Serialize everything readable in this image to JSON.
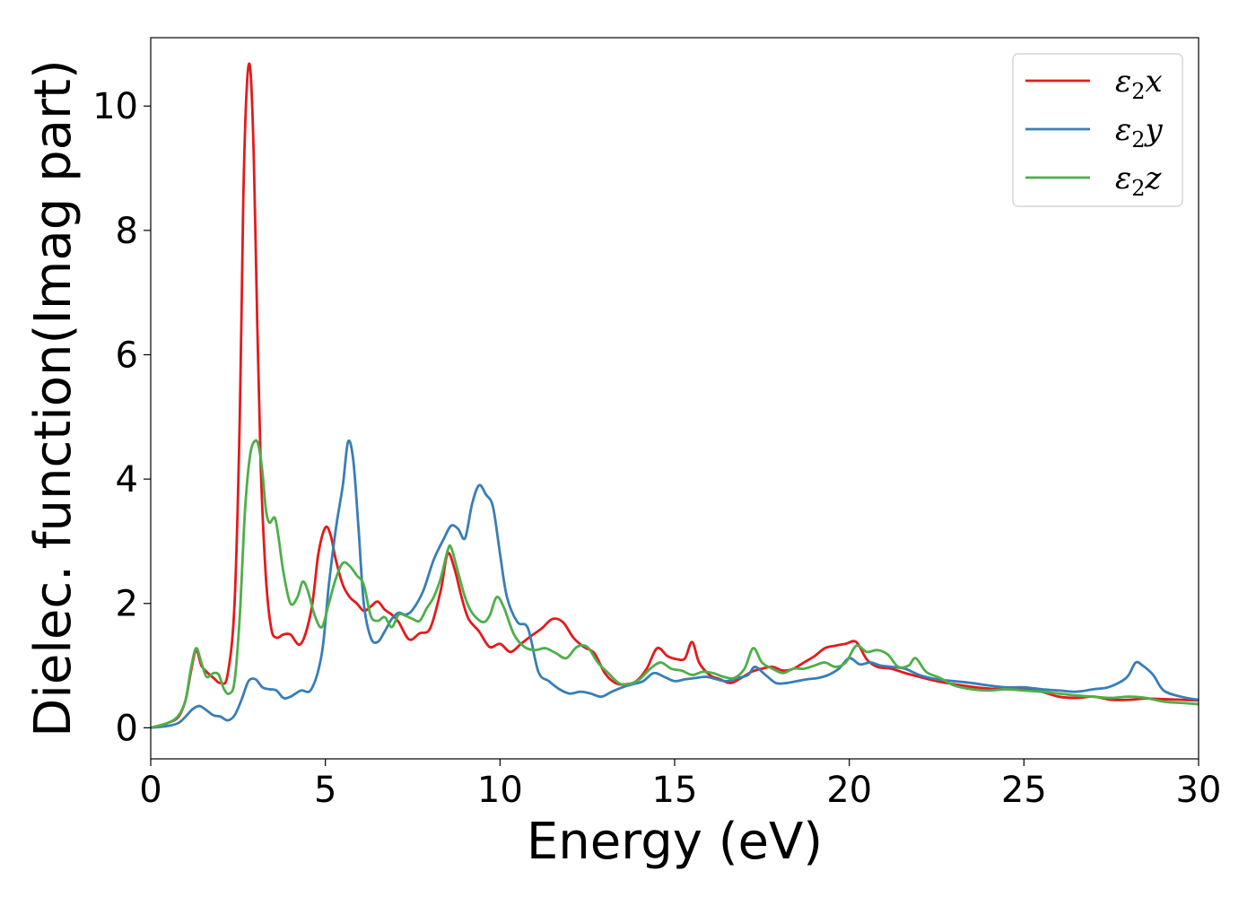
{
  "chart_data": {
    "type": "line",
    "xlabel": "Energy (eV)",
    "ylabel": "Dielec. function(Imag part)",
    "xlim": [
      0,
      30
    ],
    "ylim": [
      -0.5,
      11.1
    ],
    "xticks": [
      0,
      5,
      10,
      15,
      20,
      25,
      30
    ],
    "yticks": [
      0,
      2,
      4,
      6,
      8,
      10
    ],
    "grid": false,
    "legend_position": "top-right",
    "series": [
      {
        "name": "ε₂x",
        "legend_main": "ε",
        "legend_sub": "2",
        "legend_tail": "x",
        "color": "#e41a1c",
        "x": [
          0,
          0.5,
          0.8,
          1.0,
          1.15,
          1.3,
          1.45,
          1.6,
          1.8,
          2.0,
          2.2,
          2.4,
          2.55,
          2.65,
          2.75,
          2.85,
          2.95,
          3.05,
          3.15,
          3.3,
          3.45,
          3.6,
          3.8,
          4.0,
          4.3,
          4.6,
          4.8,
          5.0,
          5.15,
          5.3,
          5.5,
          5.7,
          5.9,
          6.1,
          6.3,
          6.5,
          6.7,
          6.9,
          7.1,
          7.4,
          7.7,
          8.0,
          8.3,
          8.5,
          8.7,
          8.9,
          9.1,
          9.4,
          9.7,
          10.0,
          10.3,
          10.6,
          10.9,
          11.2,
          11.5,
          11.8,
          12.1,
          12.4,
          12.7,
          13.0,
          13.3,
          13.6,
          13.9,
          14.2,
          14.5,
          14.8,
          15.1,
          15.3,
          15.5,
          15.7,
          16.0,
          16.3,
          16.6,
          16.9,
          17.2,
          17.5,
          17.8,
          18.1,
          18.4,
          18.7,
          19.0,
          19.3,
          19.6,
          19.9,
          20.2,
          20.5,
          20.8,
          21.2,
          21.6,
          22.0,
          22.5,
          23.0,
          23.5,
          24.0,
          24.5,
          25.0,
          25.5,
          26.0,
          26.5,
          27.0,
          27.5,
          28.0,
          28.5,
          29.0,
          29.5,
          30.0
        ],
        "y": [
          0.0,
          0.08,
          0.18,
          0.45,
          0.9,
          1.25,
          1.0,
          0.9,
          0.8,
          0.72,
          0.85,
          2.0,
          5.0,
          8.5,
          10.3,
          10.6,
          9.2,
          6.5,
          4.2,
          2.4,
          1.6,
          1.45,
          1.5,
          1.5,
          1.35,
          1.9,
          2.8,
          3.22,
          3.1,
          2.7,
          2.3,
          2.1,
          2.0,
          1.88,
          1.95,
          2.03,
          1.9,
          1.82,
          1.7,
          1.42,
          1.52,
          1.6,
          2.2,
          2.8,
          2.55,
          2.1,
          1.75,
          1.55,
          1.3,
          1.35,
          1.22,
          1.35,
          1.48,
          1.6,
          1.75,
          1.7,
          1.45,
          1.3,
          1.2,
          0.88,
          0.72,
          0.7,
          0.75,
          0.95,
          1.28,
          1.15,
          1.1,
          1.12,
          1.38,
          1.05,
          0.85,
          0.78,
          0.72,
          0.8,
          0.9,
          0.95,
          0.98,
          0.92,
          0.95,
          1.05,
          1.15,
          1.28,
          1.32,
          1.35,
          1.38,
          1.1,
          0.98,
          0.95,
          0.88,
          0.82,
          0.75,
          0.7,
          0.66,
          0.63,
          0.62,
          0.62,
          0.58,
          0.5,
          0.48,
          0.5,
          0.45,
          0.45,
          0.47,
          0.46,
          0.45,
          0.44
        ]
      },
      {
        "name": "ε₂y",
        "legend_main": "ε",
        "legend_sub": "2",
        "legend_tail": "y",
        "color": "#377eb8",
        "x": [
          0,
          0.5,
          0.8,
          1.0,
          1.2,
          1.4,
          1.6,
          1.8,
          2.0,
          2.2,
          2.4,
          2.6,
          2.8,
          3.0,
          3.2,
          3.4,
          3.6,
          3.8,
          4.0,
          4.3,
          4.6,
          4.9,
          5.1,
          5.3,
          5.5,
          5.65,
          5.8,
          5.95,
          6.1,
          6.3,
          6.5,
          6.7,
          6.9,
          7.1,
          7.3,
          7.5,
          7.8,
          8.1,
          8.4,
          8.6,
          8.8,
          9.0,
          9.2,
          9.4,
          9.6,
          9.8,
          10.0,
          10.2,
          10.5,
          10.8,
          11.1,
          11.4,
          11.7,
          12.0,
          12.3,
          12.6,
          12.9,
          13.2,
          13.5,
          13.8,
          14.1,
          14.4,
          14.7,
          15.0,
          15.3,
          15.6,
          15.9,
          16.2,
          16.5,
          16.8,
          17.1,
          17.3,
          17.6,
          17.9,
          18.2,
          18.5,
          18.8,
          19.1,
          19.4,
          19.7,
          20.0,
          20.3,
          20.6,
          20.9,
          21.2,
          21.6,
          22.0,
          22.5,
          23.0,
          23.5,
          24.0,
          24.5,
          25.0,
          25.5,
          26.0,
          26.5,
          27.0,
          27.4,
          27.8,
          28.0,
          28.2,
          28.4,
          28.7,
          29.0,
          29.5,
          30.0
        ],
        "y": [
          0.0,
          0.03,
          0.08,
          0.18,
          0.3,
          0.35,
          0.28,
          0.2,
          0.18,
          0.12,
          0.2,
          0.45,
          0.75,
          0.78,
          0.65,
          0.62,
          0.6,
          0.48,
          0.5,
          0.6,
          0.62,
          1.2,
          2.3,
          3.2,
          3.9,
          4.6,
          4.3,
          3.2,
          2.0,
          1.45,
          1.38,
          1.55,
          1.75,
          1.85,
          1.82,
          1.9,
          2.2,
          2.7,
          3.05,
          3.25,
          3.2,
          3.05,
          3.6,
          3.9,
          3.75,
          3.55,
          2.8,
          2.1,
          1.7,
          1.6,
          0.9,
          0.75,
          0.62,
          0.55,
          0.58,
          0.55,
          0.5,
          0.58,
          0.65,
          0.7,
          0.75,
          0.88,
          0.82,
          0.75,
          0.78,
          0.8,
          0.82,
          0.78,
          0.75,
          0.8,
          0.85,
          0.98,
          0.85,
          0.72,
          0.72,
          0.75,
          0.78,
          0.8,
          0.85,
          0.95,
          1.12,
          1.02,
          1.05,
          1.0,
          0.98,
          0.95,
          0.85,
          0.78,
          0.75,
          0.72,
          0.68,
          0.65,
          0.65,
          0.62,
          0.6,
          0.58,
          0.62,
          0.65,
          0.75,
          0.85,
          1.05,
          1.0,
          0.85,
          0.6,
          0.5,
          0.45
        ]
      },
      {
        "name": "ε₂z",
        "legend_main": "ε",
        "legend_sub": "2",
        "legend_tail": "z",
        "color": "#4daf4a",
        "x": [
          0,
          0.5,
          0.8,
          1.0,
          1.15,
          1.3,
          1.45,
          1.6,
          1.8,
          1.95,
          2.1,
          2.25,
          2.4,
          2.55,
          2.7,
          2.85,
          3.0,
          3.1,
          3.2,
          3.3,
          3.4,
          3.55,
          3.65,
          3.8,
          4.0,
          4.2,
          4.35,
          4.5,
          4.7,
          4.9,
          5.1,
          5.3,
          5.5,
          5.7,
          5.9,
          6.1,
          6.3,
          6.5,
          6.7,
          6.9,
          7.1,
          7.3,
          7.5,
          7.7,
          7.9,
          8.1,
          8.3,
          8.5,
          8.6,
          8.8,
          9.0,
          9.2,
          9.5,
          9.7,
          9.9,
          10.1,
          10.4,
          10.7,
          11.0,
          11.3,
          11.6,
          11.9,
          12.2,
          12.5,
          12.8,
          13.1,
          13.4,
          13.7,
          14.0,
          14.3,
          14.6,
          14.9,
          15.2,
          15.5,
          15.8,
          16.1,
          16.4,
          16.7,
          17.0,
          17.25,
          17.5,
          17.8,
          18.1,
          18.4,
          18.7,
          19.0,
          19.3,
          19.6,
          19.9,
          20.2,
          20.5,
          20.8,
          21.1,
          21.4,
          21.7,
          21.9,
          22.2,
          22.6,
          23.0,
          23.5,
          24.0,
          24.5,
          25.0,
          25.5,
          26.0,
          26.5,
          27.0,
          27.5,
          28.0,
          28.5,
          29.0,
          29.5,
          30.0
        ],
        "y": [
          0.0,
          0.08,
          0.2,
          0.45,
          0.95,
          1.28,
          1.05,
          0.82,
          0.88,
          0.85,
          0.62,
          0.55,
          0.75,
          1.8,
          3.5,
          4.4,
          4.62,
          4.5,
          4.1,
          3.5,
          3.3,
          3.38,
          3.1,
          2.5,
          2.0,
          2.1,
          2.35,
          2.2,
          1.8,
          1.62,
          2.0,
          2.4,
          2.65,
          2.6,
          2.45,
          2.3,
          1.8,
          1.72,
          1.78,
          1.62,
          1.82,
          1.8,
          1.75,
          1.72,
          1.92,
          2.1,
          2.4,
          2.85,
          2.9,
          2.5,
          2.1,
          1.85,
          1.7,
          1.8,
          2.1,
          1.95,
          1.5,
          1.3,
          1.25,
          1.28,
          1.2,
          1.12,
          1.3,
          1.3,
          1.05,
          0.88,
          0.72,
          0.7,
          0.78,
          0.95,
          1.05,
          0.95,
          0.92,
          0.85,
          0.9,
          0.88,
          0.82,
          0.8,
          0.95,
          1.28,
          1.05,
          0.95,
          0.88,
          0.95,
          0.95,
          1.0,
          1.05,
          0.98,
          1.05,
          1.32,
          1.22,
          1.25,
          1.18,
          0.98,
          1.0,
          1.12,
          0.9,
          0.8,
          0.68,
          0.62,
          0.6,
          0.62,
          0.6,
          0.58,
          0.55,
          0.52,
          0.5,
          0.48,
          0.5,
          0.48,
          0.42,
          0.4,
          0.38
        ]
      }
    ]
  }
}
